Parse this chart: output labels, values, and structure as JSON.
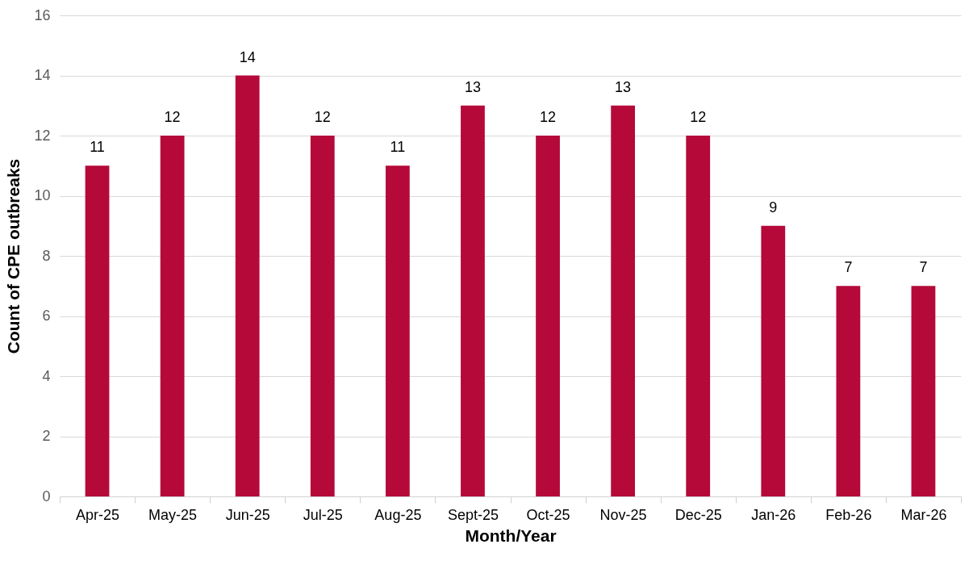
{
  "chart_data": {
    "type": "bar",
    "xlabel": "Month/Year",
    "ylabel": "Count of CPE outbreaks",
    "categories": [
      "Apr-25",
      "May-25",
      "Jun-25",
      "Jul-25",
      "Aug-25",
      "Sept-25",
      "Oct-25",
      "Nov-25",
      "Dec-25",
      "Jan-26",
      "Feb-26",
      "Mar-26"
    ],
    "values": [
      11,
      12,
      14,
      12,
      11,
      13,
      12,
      13,
      12,
      9,
      7,
      7
    ],
    "color": "#b5093a",
    "ylim": [
      0,
      16
    ],
    "yticks": [
      0,
      2,
      4,
      6,
      8,
      10,
      12,
      14,
      16
    ],
    "grid": "y",
    "data_labels": true
  }
}
